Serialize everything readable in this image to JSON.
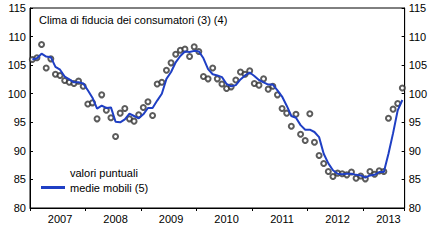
{
  "chart_data": {
    "type": "line",
    "title": "Clima di fiducia dei consumatori (3) (4)",
    "categories": [
      null,
      null,
      null,
      null,
      null,
      null,
      "2007",
      null,
      null,
      null,
      null,
      null,
      null,
      null,
      null,
      null,
      null,
      null,
      "2008",
      null,
      null,
      null,
      null,
      null,
      null,
      null,
      null,
      null,
      null,
      null,
      "2009",
      null,
      null,
      null,
      null,
      null,
      null,
      null,
      null,
      null,
      null,
      null,
      "2010",
      null,
      null,
      null,
      null,
      null,
      null,
      null,
      null,
      null,
      null,
      null,
      "2011",
      null,
      null,
      null,
      null,
      null,
      null,
      null,
      null,
      null,
      null,
      null,
      "2012",
      null,
      null,
      null,
      null,
      null,
      null,
      null,
      null,
      null,
      null,
      "2013",
      null,
      null,
      null
    ],
    "series": [
      {
        "name": "valori puntuali",
        "type": "scatter",
        "marker": "open_circle",
        "color": "#333333",
        "values": [
          106.0,
          106.3,
          108.6,
          104.5,
          106.1,
          103.4,
          103.2,
          102.3,
          102.0,
          101.8,
          102.2,
          101.3,
          98.2,
          98.4,
          95.6,
          99.8,
          97.1,
          95.8,
          92.5,
          96.6,
          97.4,
          95.6,
          95.2,
          96.3,
          97.6,
          98.6,
          96.2,
          101.7,
          102.0,
          104.1,
          105.4,
          106.9,
          107.6,
          107.8,
          106.5,
          108.2,
          107.4,
          103.0,
          102.6,
          104.5,
          102.6,
          101.7,
          100.9,
          101.2,
          102.4,
          103.8,
          103.4,
          104.0,
          101.8,
          101.5,
          102.6,
          100.8,
          101.3,
          99.8,
          97.4,
          96.6,
          94.3,
          96.4,
          92.9,
          91.8,
          96.5,
          91.5,
          89.2,
          87.8,
          86.4,
          85.5,
          86.1,
          86.0,
          85.8,
          86.3,
          85.2,
          85.6,
          85.1,
          86.4,
          85.9,
          86.5,
          86.4,
          95.7,
          97.3,
          98.3,
          101.0
        ]
      },
      {
        "name": "medie mobili (5)",
        "type": "line",
        "line_style": "solid",
        "color": "#1f3fc4",
        "values": [
          106.0,
          106.2,
          107.0,
          106.5,
          106.4,
          104.7,
          104.2,
          103.0,
          102.5,
          102.0,
          102.0,
          101.8,
          100.6,
          99.3,
          97.4,
          97.9,
          97.5,
          97.6,
          95.1,
          95.0,
          95.5,
          96.5,
          96.1,
          95.7,
          96.4,
          97.5,
          97.5,
          98.8,
          100.0,
          102.6,
          103.8,
          105.5,
          106.6,
          107.4,
          107.3,
          107.5,
          107.4,
          106.2,
          104.3,
          103.4,
          103.2,
          102.9,
          101.7,
          101.3,
          101.5,
          102.5,
          103.2,
          103.7,
          103.1,
          102.4,
          102.0,
          101.6,
          101.6,
          100.6,
          99.5,
          97.9,
          96.1,
          95.8,
          94.5,
          93.7,
          93.7,
          93.3,
          92.4,
          89.5,
          87.8,
          86.6,
          86.0,
          85.9,
          86.0,
          86.0,
          85.8,
          85.7,
          85.3,
          85.7,
          85.8,
          86.3,
          86.3,
          89.5,
          93.1,
          97.1,
          98.9
        ]
      }
    ],
    "ylim": [
      80,
      115
    ],
    "yticks": [
      80,
      85,
      90,
      95,
      100,
      105,
      110,
      115
    ],
    "y2lim": [
      80,
      115
    ],
    "y2ticks": [
      80,
      85,
      90,
      95,
      100,
      105,
      110,
      115
    ],
    "grid": false,
    "legend": "lower left"
  }
}
